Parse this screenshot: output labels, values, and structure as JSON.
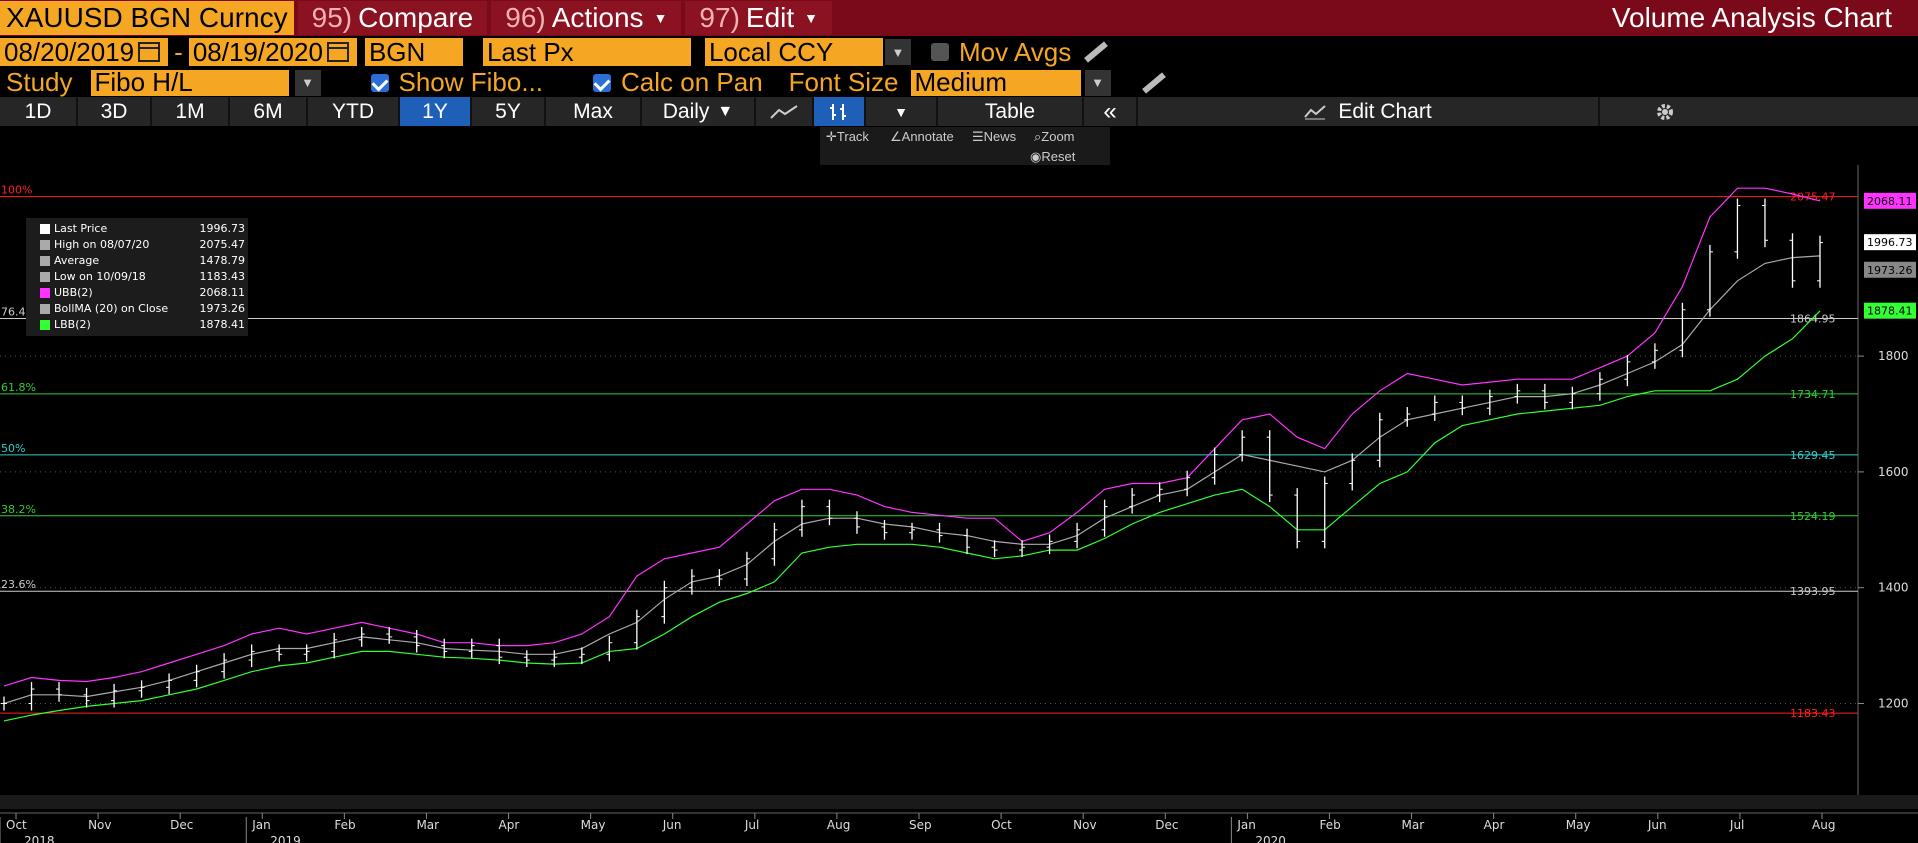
{
  "header": {
    "ticker": "XAUUSD BGN Curncy",
    "menus": [
      {
        "num": "95)",
        "label": "Compare"
      },
      {
        "num": "96)",
        "label": "Actions"
      },
      {
        "num": "97)",
        "label": "Edit"
      }
    ],
    "title": "Volume Analysis Chart"
  },
  "controls": {
    "start_date": "08/20/2019",
    "date_sep": "-",
    "end_date": "08/19/2020",
    "source": "BGN",
    "field": "Last Px",
    "currency": "Local CCY",
    "mov_avgs": "Mov Avgs",
    "study_label": "Study",
    "study_value": "Fibo H/L",
    "show_fibo": "Show Fibo...",
    "calc_on_pan": "Calc on Pan",
    "font_size_label": "Font Size",
    "font_size_value": "Medium"
  },
  "timeframes": [
    "1D",
    "3D",
    "1M",
    "6M",
    "YTD",
    "1Y",
    "5Y",
    "Max"
  ],
  "active_timeframe": "1Y",
  "period": "Daily",
  "table_label": "Table",
  "edit_chart": "Edit Chart",
  "tools": {
    "track": "Track",
    "annotate": "Annotate",
    "news": "News",
    "zoom": "Zoom",
    "reset": "Reset"
  },
  "legend": [
    {
      "label": "Last Price",
      "value": "1996.73",
      "color": "#ffffff"
    },
    {
      "label": "High on 08/07/20",
      "value": "2075.47",
      "color": "#aaaaaa"
    },
    {
      "label": "Average",
      "value": "1478.79",
      "color": "#aaaaaa"
    },
    {
      "label": "Low on 10/09/18",
      "value": "1183.43",
      "color": "#aaaaaa"
    },
    {
      "label": "UBB(2)",
      "value": "2068.11",
      "color": "#ff33ff"
    },
    {
      "label": "BollMA (20)  on Close",
      "value": "1973.26",
      "color": "#aaaaaa"
    },
    {
      "label": "LBB(2)",
      "value": "1878.41",
      "color": "#33ff33"
    }
  ],
  "chart_data": {
    "type": "line",
    "ylim": [
      1080,
      2130
    ],
    "y_ticks": [
      1200,
      1400,
      1600,
      1800
    ],
    "fibo_levels": [
      {
        "pct": "100%",
        "value": 2075.47,
        "label": "2075.47",
        "color": "#ff2020"
      },
      {
        "pct": "76.4%",
        "value": 1864.95,
        "label": "1864.95",
        "color": "#cccccc"
      },
      {
        "pct": "61.8%",
        "value": 1734.71,
        "label": "1734.71",
        "color": "#33cc33"
      },
      {
        "pct": "50%",
        "value": 1629.45,
        "label": "1629.45",
        "color": "#33cccc"
      },
      {
        "pct": "38.2%",
        "value": 1524.19,
        "label": "1524.19",
        "color": "#33cc33"
      },
      {
        "pct": "23.6%",
        "value": 1393.95,
        "label": "1393.95",
        "color": "#cccccc"
      },
      {
        "pct": "",
        "value": 1183.43,
        "label": "1183.43",
        "color": "#ff2020"
      }
    ],
    "right_tags": [
      {
        "value": 2068.11,
        "label": "2068.11",
        "bg": "#ff33ff",
        "fg": "#000000"
      },
      {
        "value": 1996.73,
        "label": "1996.73",
        "bg": "#ffffff",
        "fg": "#000000"
      },
      {
        "value": 1973.26,
        "label": "1973.26",
        "bg": "#888888",
        "fg": "#000000"
      },
      {
        "value": 1878.41,
        "label": "1878.41",
        "bg": "#33ff33",
        "fg": "#000000"
      }
    ],
    "months": [
      "Oct",
      "Nov",
      "Dec",
      "Jan",
      "Feb",
      "Mar",
      "Apr",
      "May",
      "Jun",
      "Jul",
      "Aug",
      "Sep",
      "Oct",
      "Nov",
      "Dec",
      "Jan",
      "Feb",
      "Mar",
      "Apr",
      "May",
      "Jun",
      "Jul",
      "Aug"
    ],
    "years": [
      {
        "label": "2018",
        "month_index": 0
      },
      {
        "label": "2019",
        "month_index": 3
      },
      {
        "label": "2020",
        "month_index": 15
      }
    ],
    "series": [
      {
        "name": "Last Price",
        "color": "#ffffff",
        "values": [
          1200,
          1225,
          1215,
          1205,
          1222,
          1228,
          1240,
          1255,
          1275,
          1290,
          1285,
          1290,
          1310,
          1320,
          1315,
          1300,
          1290,
          1300,
          1280,
          1275,
          1280,
          1285,
          1305,
          1350,
          1400,
          1420,
          1415,
          1450,
          1500,
          1540,
          1520,
          1505,
          1495,
          1500,
          1490,
          1470,
          1465,
          1470,
          1480,
          1500,
          1540,
          1560,
          1570,
          1590,
          1630,
          1660,
          1560,
          1480,
          1580,
          1620,
          1690,
          1700,
          1720,
          1710,
          1730,
          1740,
          1720,
          1735,
          1760,
          1790,
          1810,
          1880,
          1980,
          2060,
          2000,
          1930,
          1996
        ]
      },
      {
        "name": "UBB(2)",
        "color": "#ff33ff",
        "values": [
          1230,
          1245,
          1240,
          1238,
          1245,
          1255,
          1270,
          1285,
          1300,
          1320,
          1330,
          1320,
          1330,
          1340,
          1330,
          1320,
          1305,
          1305,
          1300,
          1300,
          1305,
          1320,
          1350,
          1420,
          1450,
          1460,
          1470,
          1510,
          1550,
          1570,
          1570,
          1560,
          1540,
          1530,
          1525,
          1520,
          1520,
          1480,
          1495,
          1530,
          1570,
          1580,
          1580,
          1590,
          1640,
          1690,
          1700,
          1660,
          1640,
          1700,
          1740,
          1770,
          1760,
          1750,
          1755,
          1760,
          1760,
          1760,
          1780,
          1800,
          1840,
          1920,
          2040,
          2090,
          2090,
          2080,
          2068
        ]
      },
      {
        "name": "BollMA (20)  on Close",
        "color": "#aaaaaa",
        "values": [
          1200,
          1215,
          1215,
          1212,
          1220,
          1228,
          1240,
          1255,
          1270,
          1285,
          1295,
          1295,
          1305,
          1315,
          1310,
          1305,
          1295,
          1292,
          1290,
          1285,
          1285,
          1295,
          1320,
          1340,
          1380,
          1410,
          1420,
          1440,
          1480,
          1510,
          1520,
          1520,
          1510,
          1505,
          1495,
          1490,
          1480,
          1475,
          1475,
          1490,
          1520,
          1540,
          1560,
          1570,
          1600,
          1630,
          1620,
          1610,
          1600,
          1620,
          1660,
          1690,
          1700,
          1710,
          1720,
          1730,
          1730,
          1735,
          1750,
          1770,
          1790,
          1820,
          1880,
          1930,
          1960,
          1970,
          1973
        ]
      },
      {
        "name": "LBB(2)",
        "color": "#33ff33",
        "values": [
          1170,
          1180,
          1188,
          1195,
          1200,
          1205,
          1215,
          1225,
          1240,
          1255,
          1265,
          1270,
          1280,
          1290,
          1290,
          1285,
          1280,
          1278,
          1275,
          1270,
          1268,
          1270,
          1290,
          1295,
          1320,
          1350,
          1375,
          1390,
          1410,
          1460,
          1470,
          1475,
          1475,
          1475,
          1470,
          1460,
          1450,
          1455,
          1465,
          1465,
          1485,
          1510,
          1530,
          1545,
          1560,
          1570,
          1540,
          1500,
          1500,
          1540,
          1580,
          1600,
          1650,
          1680,
          1690,
          1700,
          1705,
          1710,
          1715,
          1730,
          1740,
          1740,
          1740,
          1760,
          1800,
          1830,
          1878
        ]
      }
    ]
  }
}
